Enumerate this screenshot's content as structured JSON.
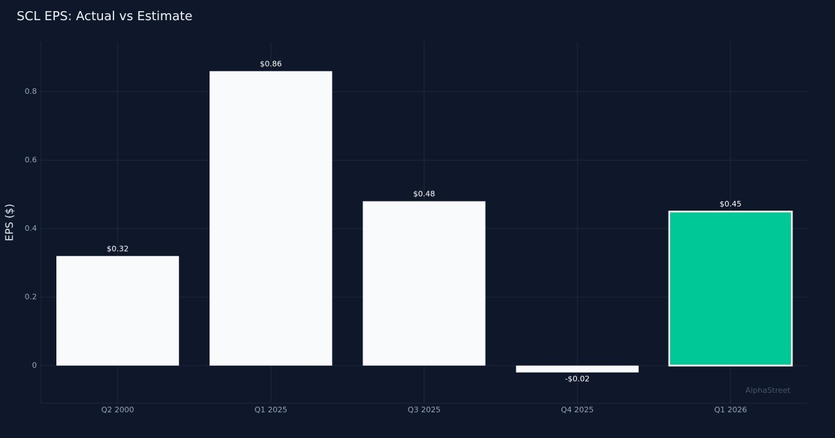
{
  "chart_data": {
    "type": "bar",
    "title": "SCL EPS: Actual vs Estimate",
    "y_label": "EPS ($)",
    "categories": [
      "Q2 2000",
      "Q1 2025",
      "Q3 2025",
      "Q4 2025",
      "Q1 2026"
    ],
    "values": [
      0.32,
      0.86,
      0.48,
      -0.02,
      0.45
    ],
    "value_labels": [
      "$0.32",
      "$0.86",
      "$0.48",
      "-$0.02",
      "$0.45"
    ],
    "colors": [
      "#f8fafc",
      "#f8fafc",
      "#f8fafc",
      "#f8fafc",
      "#00c896"
    ],
    "ylim": [
      -0.11,
      0.946
    ],
    "yticks": [
      0,
      0.2,
      0.4,
      0.6,
      0.8
    ],
    "grid": true,
    "watermark": "AlphaStreet"
  }
}
